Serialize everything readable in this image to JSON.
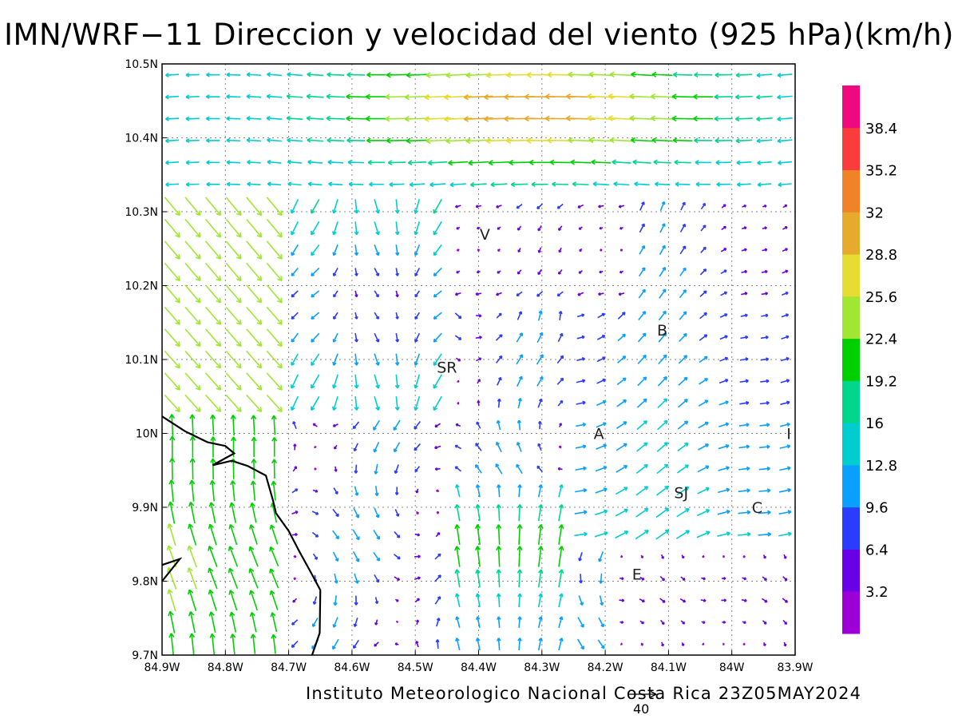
{
  "title": "IMN/WRF−11 Direccion y velocidad del viento (925 hPa)(km/h)",
  "footer": "Instituto Meteorologico Nacional Costa Rica 23Z05MAY2024",
  "reference_vector": {
    "label": "40",
    "value": 40
  },
  "axes": {
    "lon_ticks": [
      "84.9W",
      "84.8W",
      "84.7W",
      "84.6W",
      "84.5W",
      "84.4W",
      "84.3W",
      "84.2W",
      "84.1W",
      "84W",
      "83.9W"
    ],
    "lat_ticks": [
      "10.5N",
      "10.4N",
      "10.3N",
      "10.2N",
      "10.1N",
      "10N",
      "9.9N",
      "9.8N",
      "9.7N"
    ],
    "lon_range": [
      -84.9,
      -83.9
    ],
    "lat_range": [
      9.7,
      10.5
    ]
  },
  "locations": [
    {
      "label": "V",
      "lon": -84.39,
      "lat": 10.27
    },
    {
      "label": "B",
      "lon": -84.11,
      "lat": 10.14
    },
    {
      "label": "SR",
      "lon": -84.45,
      "lat": 10.09
    },
    {
      "label": "A",
      "lon": -84.21,
      "lat": 10
    },
    {
      "label": "I",
      "lon": -83.91,
      "lat": 10
    },
    {
      "label": "SJ",
      "lon": -84.08,
      "lat": 9.92
    },
    {
      "label": "C",
      "lon": -83.96,
      "lat": 9.9
    },
    {
      "label": "E",
      "lon": -84.15,
      "lat": 9.81
    }
  ],
  "colorbar": {
    "labels": [
      "3.2",
      "6.4",
      "9.6",
      "12.8",
      "16",
      "19.2",
      "22.4",
      "25.6",
      "28.8",
      "32",
      "35.2",
      "38.4"
    ],
    "colors": [
      "#9c00d6",
      "#6a00e8",
      "#2a3cff",
      "#0aa0ff",
      "#00cdd0",
      "#00d68c",
      "#00d000",
      "#a0e632",
      "#e6dc32",
      "#e6aa2c",
      "#f08228",
      "#fa3c3c",
      "#f0087e"
    ]
  },
  "coastline": [
    [
      -84.9,
      10.023
    ],
    [
      -84.864,
      10.003
    ],
    [
      -84.828,
      9.988
    ],
    [
      -84.8,
      9.983
    ],
    [
      -84.786,
      9.973
    ],
    [
      -84.82,
      9.957
    ],
    [
      -84.79,
      9.963
    ],
    [
      -84.765,
      9.956
    ],
    [
      -84.736,
      9.943
    ],
    [
      -84.725,
      9.91
    ],
    [
      -84.72,
      9.892
    ],
    [
      -84.7,
      9.868
    ],
    [
      -84.683,
      9.84
    ],
    [
      -84.665,
      9.812
    ],
    [
      -84.65,
      9.788
    ],
    [
      -84.651,
      9.73
    ],
    [
      -84.663,
      9.7
    ]
  ],
  "coastline_fragment": [
    [
      -84.9,
      9.822
    ],
    [
      -84.872,
      9.83
    ],
    [
      -84.9,
      9.8
    ]
  ]
}
